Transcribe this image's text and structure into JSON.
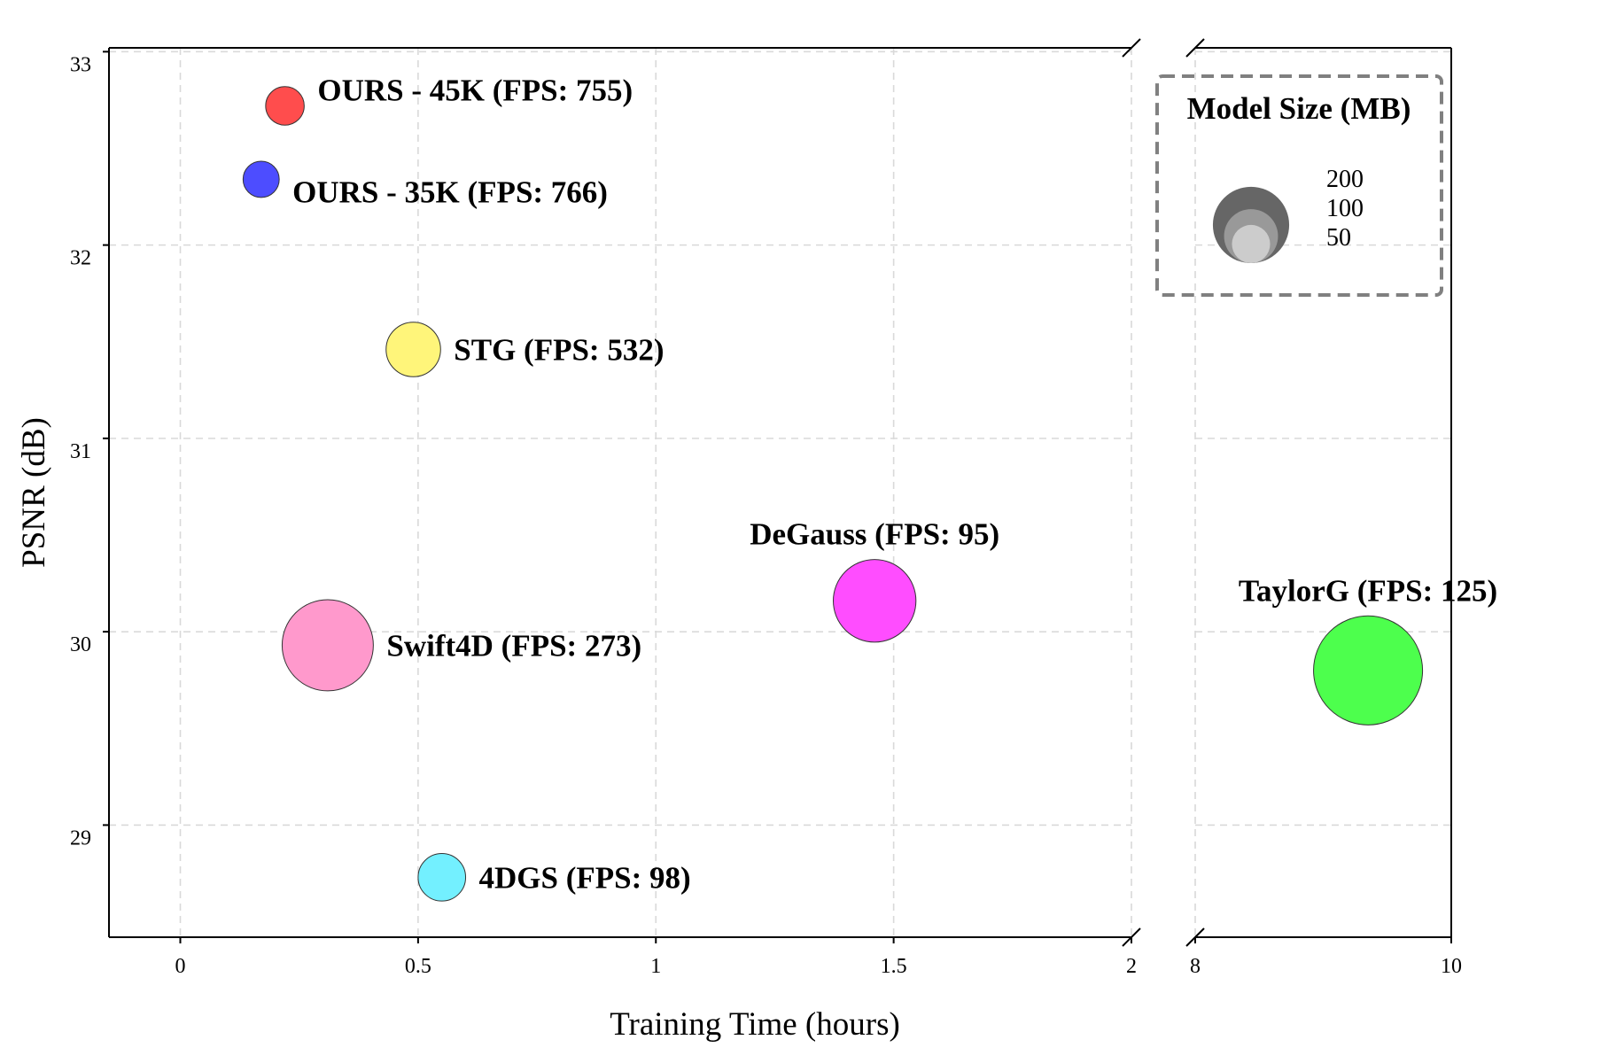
{
  "chart_data": {
    "type": "scatter",
    "xlabel": "Training Time (hours)",
    "ylabel": "PSNR (dB)",
    "broken_x_axis": true,
    "x_segments": [
      {
        "xlim": [
          -0.15,
          2.0
        ],
        "ticks": [
          0,
          0.5,
          1,
          1.5,
          2
        ],
        "tick_labels": [
          "0",
          "0.5",
          "1",
          "1.5",
          "2"
        ]
      },
      {
        "xlim": [
          8,
          10
        ],
        "ticks": [
          8,
          10
        ],
        "tick_labels": [
          "8",
          "10"
        ]
      }
    ],
    "ylim": [
      28.42,
      33.02
    ],
    "yticks": [
      29,
      30,
      31,
      32,
      33
    ],
    "ytick_labels": [
      "29",
      "30",
      "31",
      "32",
      "33"
    ],
    "grid": true,
    "points": [
      {
        "label": "OURS - 45K (FPS: 755)",
        "x": 0.22,
        "y": 32.72,
        "size_mb": 25,
        "color": "#ff4d4d"
      },
      {
        "label": "OURS - 35K (FPS: 766)",
        "x": 0.17,
        "y": 32.34,
        "size_mb": 22,
        "color": "#4d4dff"
      },
      {
        "label": "STG (FPS: 532)",
        "x": 0.49,
        "y": 31.46,
        "size_mb": 50,
        "color": "#fff57a"
      },
      {
        "label": "Swift4D (FPS: 273)",
        "x": 0.31,
        "y": 29.93,
        "size_mb": 140,
        "color": "#ff99cc"
      },
      {
        "label": "DeGauss (FPS: 95)",
        "x": 1.46,
        "y": 30.16,
        "size_mb": 115,
        "color": "#ff4dff"
      },
      {
        "label": "4DGS (FPS: 98)",
        "x": 0.55,
        "y": 28.73,
        "size_mb": 38,
        "color": "#73f0ff"
      },
      {
        "label": "TaylorG (FPS: 125)",
        "x": 9.35,
        "y": 29.8,
        "size_mb": 200,
        "color": "#4dff4d"
      }
    ],
    "legend": {
      "title": "Model Size (MB)",
      "placement": "top-right",
      "entries": [
        {
          "label": "200",
          "size_mb": 200,
          "color": "#666666"
        },
        {
          "label": "100",
          "size_mb": 100,
          "color": "#999999"
        },
        {
          "label": "50",
          "size_mb": 50,
          "color": "#cccccc"
        }
      ]
    }
  }
}
